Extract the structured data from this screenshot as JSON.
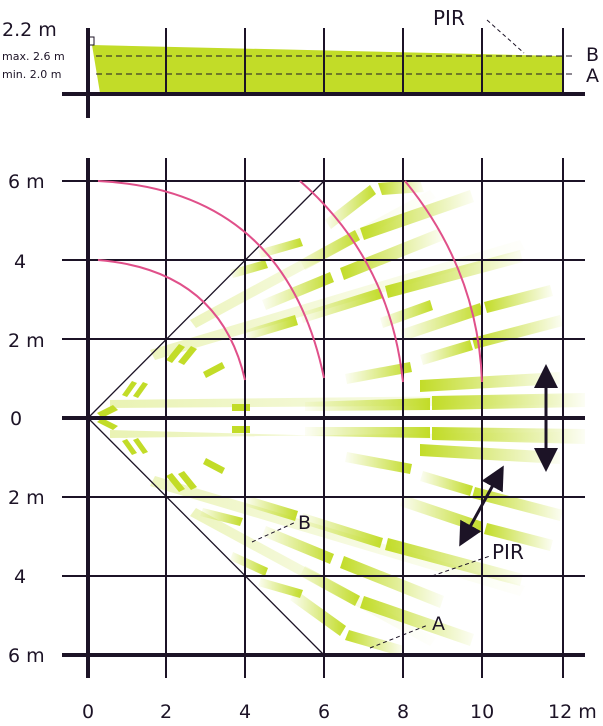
{
  "side_view": {
    "height_label": "2.2 m",
    "max_label": "max. 2.6 m",
    "min_label": "min. 2.0 m",
    "pir_label": "PIR",
    "line_b_label": "B",
    "line_a_label": "A"
  },
  "top_view": {
    "y_labels": [
      "6 m",
      "4",
      "2 m",
      "0",
      "2 m",
      "4",
      "6 m"
    ],
    "x_labels": [
      "0",
      "2",
      "4",
      "6",
      "8",
      "10",
      "12 m"
    ],
    "b_label": "B",
    "pir_label": "PIR",
    "a_label": "A"
  },
  "colors": {
    "grid": "#1c1326",
    "zone": "#c2dc28",
    "arc": "#e0508a"
  },
  "icons": [
    "vertical-double-arrow-icon",
    "diagonal-double-arrow-icon"
  ]
}
